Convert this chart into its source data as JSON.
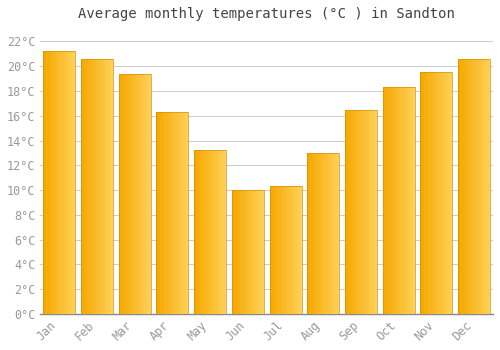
{
  "title": "Average monthly temperatures (°C ) in Sandton",
  "months": [
    "Jan",
    "Feb",
    "Mar",
    "Apr",
    "May",
    "Jun",
    "Jul",
    "Aug",
    "Sep",
    "Oct",
    "Nov",
    "Dec"
  ],
  "values": [
    21.2,
    20.6,
    19.4,
    16.3,
    13.2,
    10.0,
    10.3,
    13.0,
    16.5,
    18.3,
    19.5,
    20.6
  ],
  "bar_color_dark": "#F5A800",
  "bar_color_light": "#FFD055",
  "bar_color_mid": "#FFBC20",
  "bar_edge_color": "#D4900A",
  "background_color": "#FFFFFF",
  "grid_color": "#CCCCCC",
  "text_color": "#999999",
  "title_color": "#444444",
  "ylim": [
    0,
    23
  ],
  "yticks": [
    0,
    2,
    4,
    6,
    8,
    10,
    12,
    14,
    16,
    18,
    20,
    22
  ],
  "title_fontsize": 10,
  "tick_fontsize": 8.5,
  "bar_width": 0.85
}
